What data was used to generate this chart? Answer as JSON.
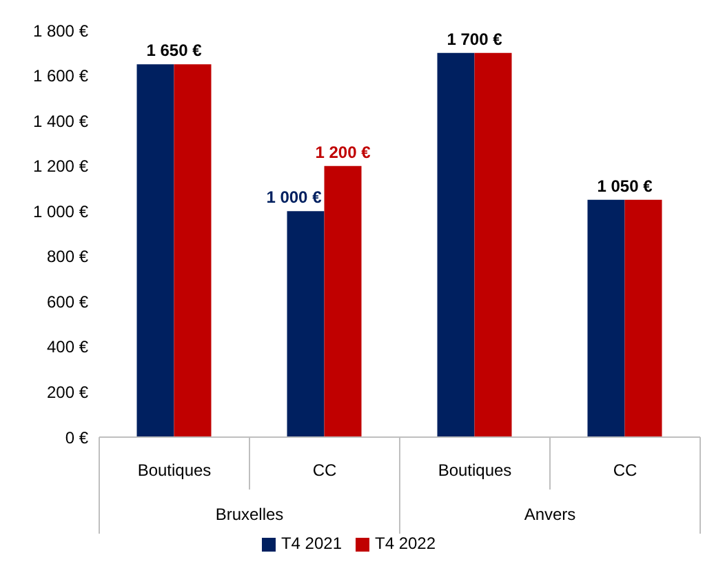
{
  "chart_data": {
    "type": "bar",
    "categories": [
      "Boutiques",
      "CC",
      "Boutiques",
      "CC"
    ],
    "annotations": [
      "Bruxelles",
      "Anvers"
    ],
    "series": [
      {
        "name": "T4 2021",
        "color": "#002060",
        "values": [
          1650,
          1000,
          1700,
          1050
        ],
        "value_labels": [
          "1 650 €",
          "1 000 €",
          "1 700 €",
          "1 050 €"
        ]
      },
      {
        "name": "T4 2022",
        "color": "#c00000",
        "values": [
          1650,
          1200,
          1700,
          1050
        ],
        "value_labels": [
          null,
          "1 200 €",
          null,
          null
        ]
      }
    ],
    "ylim": [
      0,
      1800
    ],
    "yticks": [
      {
        "value": 0,
        "label": "0 €"
      },
      {
        "value": 200,
        "label": "200 €"
      },
      {
        "value": 400,
        "label": "400 €"
      },
      {
        "value": 600,
        "label": "600 €"
      },
      {
        "value": 800,
        "label": "800 €"
      },
      {
        "value": 1000,
        "label": "1 000 €"
      },
      {
        "value": 1200,
        "label": "1 200 €"
      },
      {
        "value": 1400,
        "label": "1 400 €"
      },
      {
        "value": 1600,
        "label": "1 600 €"
      },
      {
        "value": 1800,
        "label": "1 800 €"
      }
    ],
    "grid": false,
    "legend": "bottom"
  }
}
